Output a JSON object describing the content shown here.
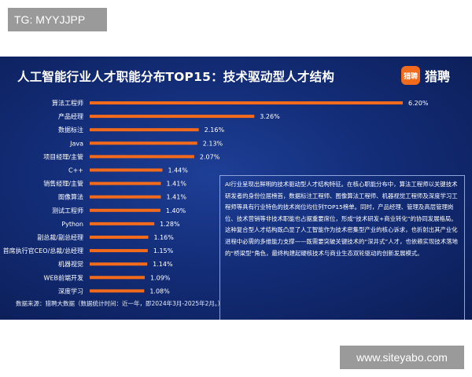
{
  "watermark_top": "TG: MYYJJPP",
  "watermark_bottom": "www.siteyabo.com",
  "brand": {
    "icon_text": "猎聘",
    "name": "猎聘",
    "color": "#f26b1d"
  },
  "colors": {
    "bar": "#f26b1d",
    "background": "#132d78"
  },
  "chart_data": {
    "type": "bar",
    "orientation": "horizontal",
    "title": "人工智能行业人才职能分布TOP15：技术驱动型人才结构",
    "categories": [
      "算法工程师",
      "产品经理",
      "数据标注",
      "Java",
      "项目经理/主管",
      "C++",
      "销售经理/主管",
      "图像算法",
      "测试工程师",
      "Python",
      "副总裁/副总经理",
      "首席执行官CEO/总裁/总经理",
      "机器视觉",
      "WEB前端开发",
      "深度学习"
    ],
    "values": [
      6.2,
      3.26,
      2.16,
      2.13,
      2.07,
      1.44,
      1.41,
      1.41,
      1.4,
      1.28,
      1.16,
      1.15,
      1.14,
      1.09,
      1.08
    ],
    "value_labels": [
      "6.20%",
      "3.26%",
      "2.16%",
      "2.13%",
      "2.07%",
      "1.44%",
      "1.41%",
      "1.41%",
      "1.40%",
      "1.28%",
      "1.16%",
      "1.15%",
      "1.14%",
      "1.09%",
      "1.08%"
    ],
    "unit": "%",
    "grid": false,
    "legend": "none"
  },
  "description": {
    "paragraphs": [
      "AI行业呈现出鲜明的技术驱动型人才结构特征。在核心职能分布中，算法工程师以关键技术研发者的身份位居榜首，数据标注工程师、图像算法工程师、机器视觉工程师及深度学习工程师等具有行业特色的技术岗位均位列TOP15榜单。同时，产品经理、管理及高层管理岗位、技术营销等非技术职能也占据重要席位，形成“技术研发+商业转化”的协同发展格局。",
      "这种复合型人才结构既凸显了人工智能作为技术密集型产业的核心诉求，也折射出其产业化进程中必需的多维能力支撑——既需要突破关键技术的“深井式”人才，也依赖实现技术落地的“桥梁型”角色，最终构建起硬核技术与商业生态双轮驱动的创新发展模式。"
    ]
  },
  "source": "数据来源：猎聘大数据（数据统计时间：近一年，即2024年3月-2025年2月。）"
}
